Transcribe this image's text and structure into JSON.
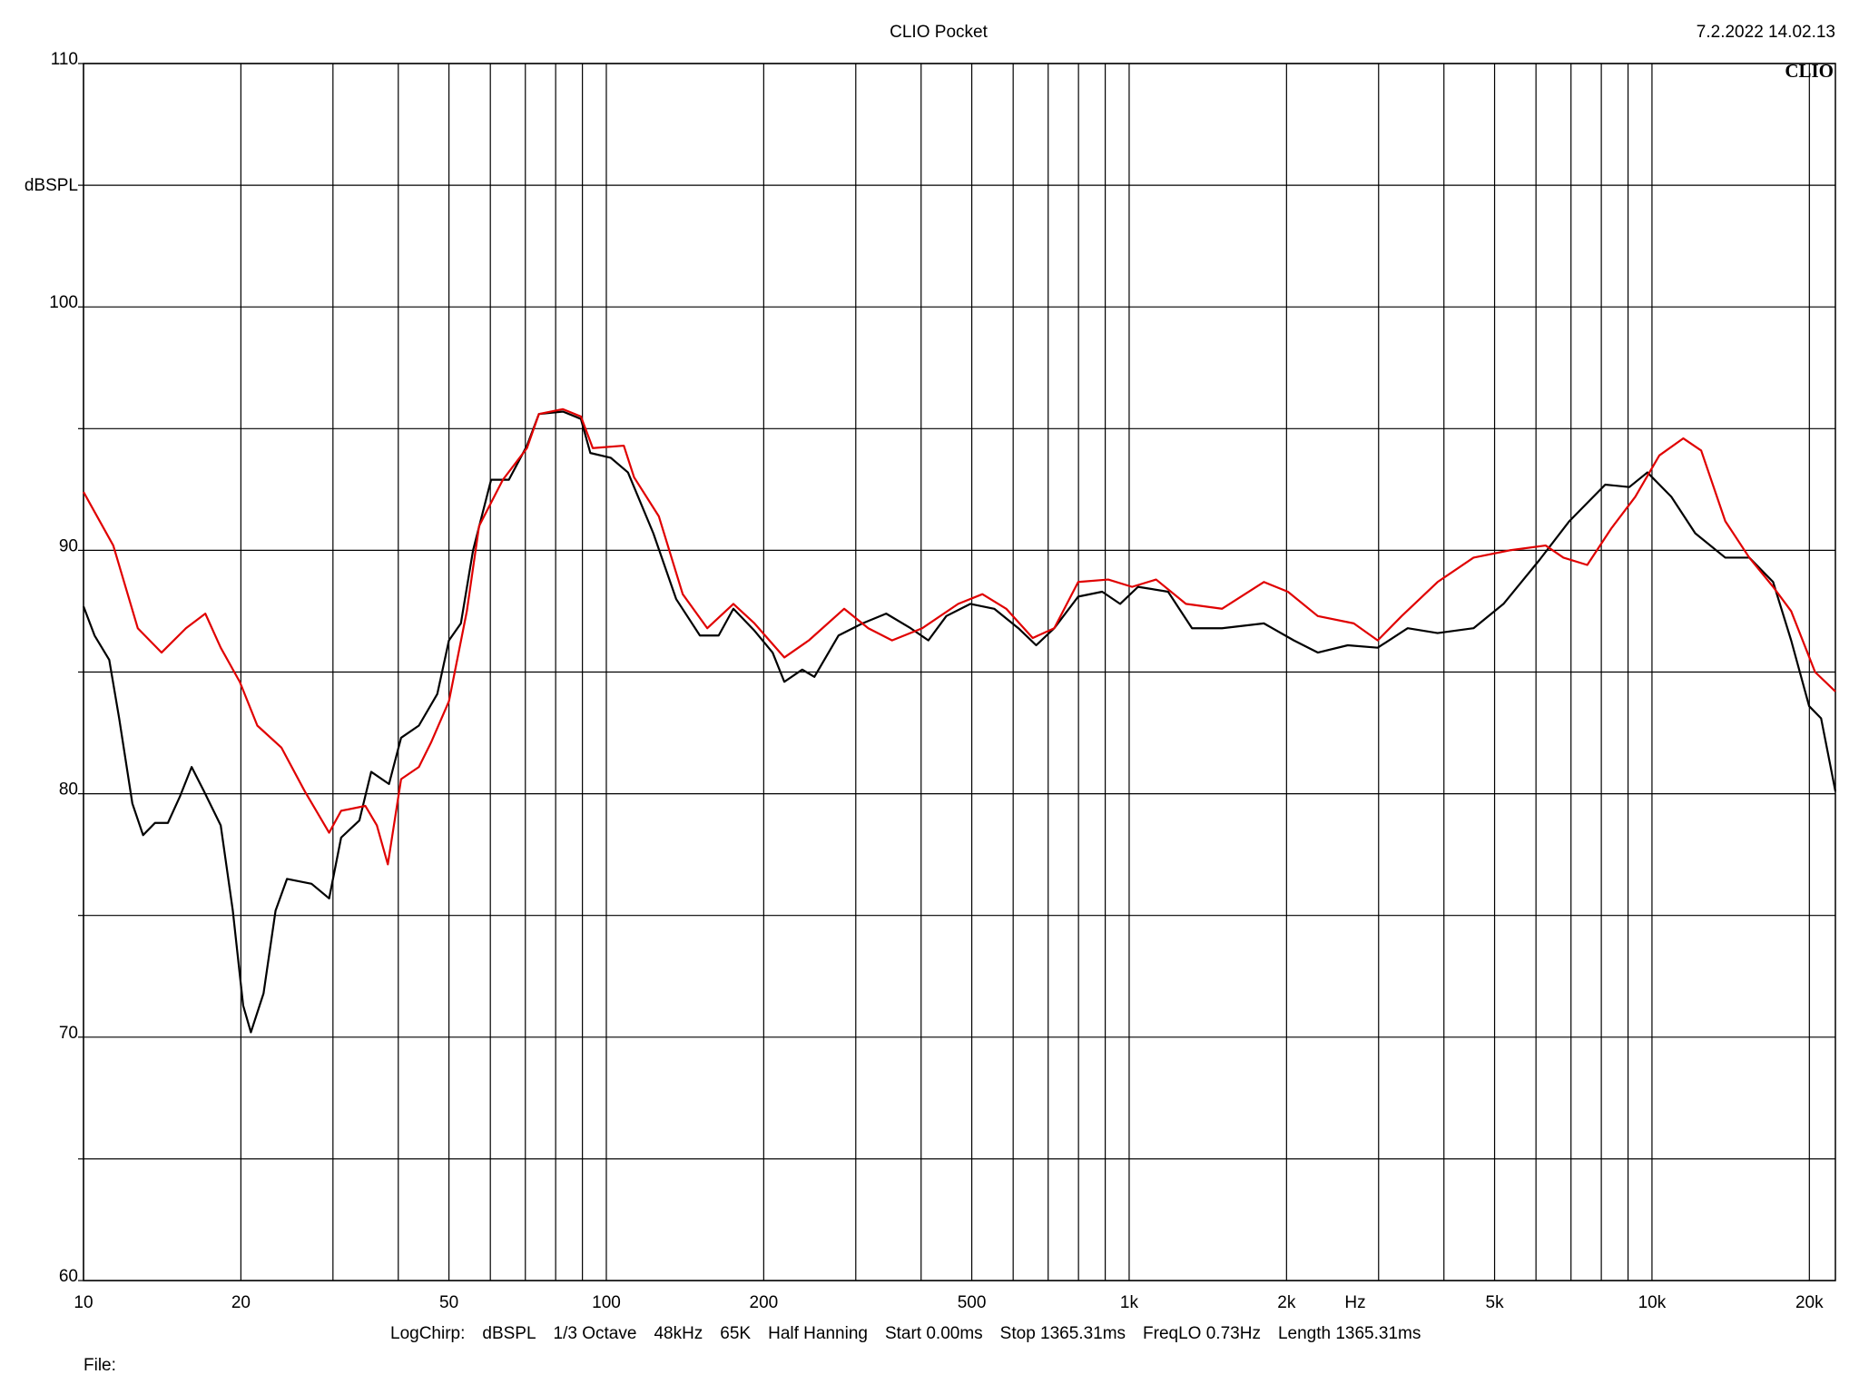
{
  "chart_data": {
    "type": "line",
    "title": "CLIO Pocket",
    "date": "7.2.2022 14.02.13",
    "logo": "CLIO",
    "ylabel": "dBSPL",
    "xlabel": "Hz",
    "settings": [
      "LogChirp:",
      "dBSPL",
      "1/3 Octave",
      "48kHz",
      "65K",
      "Half Hanning",
      "Start 0.00ms",
      "Stop 1365.31ms",
      "FreqLO 0.73Hz",
      "Length 1365.31ms"
    ],
    "file_label": "File:",
    "xlog": true,
    "grid": true,
    "xlim": [
      10,
      22430
    ],
    "ylim": [
      60,
      110
    ],
    "xticks": [
      10,
      20,
      {
        "value": 30,
        "label": null
      },
      {
        "value": 40,
        "label": null
      },
      50,
      {
        "value": 60,
        "label": null
      },
      {
        "value": 70,
        "label": null
      },
      {
        "value": 80,
        "label": null
      },
      {
        "value": 90,
        "label": null
      },
      100,
      200,
      {
        "value": 300,
        "label": null
      },
      {
        "value": 400,
        "label": null
      },
      500,
      {
        "value": 600,
        "label": null
      },
      {
        "value": 700,
        "label": null
      },
      {
        "value": 800,
        "label": null
      },
      {
        "value": 900,
        "label": null
      },
      {
        "value": 1000,
        "label": "1k"
      },
      {
        "value": 2000,
        "label": "2k"
      },
      {
        "value": 3000,
        "label": null
      },
      {
        "value": 4000,
        "label": null
      },
      {
        "value": 5000,
        "label": "5k"
      },
      {
        "value": 6000,
        "label": null
      },
      {
        "value": 7000,
        "label": null
      },
      {
        "value": 8000,
        "label": null
      },
      {
        "value": 9000,
        "label": null
      },
      {
        "value": 10000,
        "label": "10k"
      },
      {
        "value": 20000,
        "label": "20k"
      }
    ],
    "yticks": [
      60,
      {
        "value": 65,
        "label": null
      },
      70,
      {
        "value": 75,
        "label": null
      },
      80,
      {
        "value": 85,
        "label": null
      },
      90,
      {
        "value": 95,
        "label": null
      },
      100,
      {
        "value": 105,
        "label": null
      },
      110
    ],
    "series": [
      {
        "color": "#000000",
        "x": [
          10,
          10.5,
          11.2,
          11.7,
          12.4,
          13.0,
          13.7,
          14.5,
          15.3,
          16.1,
          17.0,
          18.3,
          19.3,
          20.2,
          20.9,
          22.1,
          23.3,
          24.5,
          27.3,
          29.5,
          31.1,
          33.7,
          35.5,
          38.4,
          40.5,
          43.8,
          47.5,
          50.0,
          52.7,
          55.6,
          60.2,
          65.1,
          70.5,
          74.3,
          82.6,
          89.4,
          93.2,
          102,
          110,
          123,
          136,
          151,
          164,
          175,
          192,
          208,
          219,
          237,
          250,
          278,
          309,
          343,
          382,
          413,
          447,
          497,
          552,
          614,
          664,
          719,
          799,
          888,
          961,
          1040,
          1187,
          1319,
          1505,
          1810,
          2065,
          2295,
          2619,
          2988,
          3410,
          3890,
          4557,
          5200,
          6090,
          6950,
          8140,
          9050,
          9800,
          10890,
          12100,
          13810,
          15350,
          17050,
          18460,
          19980,
          21060,
          22430
        ],
        "values": [
          87.7,
          86.5,
          85.5,
          83.1,
          79.6,
          78.3,
          78.8,
          78.8,
          79.9,
          81.1,
          80.1,
          78.7,
          75.2,
          71.3,
          70.2,
          71.8,
          75.2,
          76.5,
          76.3,
          75.7,
          78.2,
          78.9,
          80.9,
          80.4,
          82.3,
          82.8,
          84.1,
          86.3,
          87.0,
          90.0,
          92.9,
          92.9,
          94.3,
          95.6,
          95.7,
          95.4,
          94.0,
          93.8,
          93.2,
          90.7,
          88.0,
          86.5,
          86.5,
          87.6,
          86.7,
          85.8,
          84.6,
          85.1,
          84.8,
          86.5,
          87.0,
          87.4,
          86.8,
          86.3,
          87.3,
          87.8,
          87.6,
          86.8,
          86.1,
          86.8,
          88.1,
          88.3,
          87.8,
          88.5,
          88.3,
          86.8,
          86.8,
          87.0,
          86.3,
          85.8,
          86.1,
          86.0,
          86.8,
          86.6,
          86.8,
          87.8,
          89.6,
          91.2,
          92.7,
          92.6,
          93.2,
          92.2,
          90.7,
          89.7,
          89.7,
          88.7,
          86.3,
          83.6,
          83.1,
          80.1
        ]
      },
      {
        "color": "#e00000",
        "x": [
          10,
          11.4,
          12.7,
          14.1,
          15.7,
          17.1,
          18.3,
          19.9,
          21.5,
          23.9,
          26.5,
          29.5,
          31.1,
          34.6,
          36.4,
          38.2,
          40.5,
          43.8,
          46.2,
          50.0,
          54.1,
          57.1,
          63.4,
          70.5,
          74.3,
          82.6,
          89.4,
          94.2,
          108,
          113,
          126,
          140,
          156,
          175,
          192,
          219,
          244,
          285,
          317,
          352,
          402,
          471,
          524,
          582,
          654,
          719,
          799,
          912,
          1013,
          1126,
          1284,
          1505,
          1810,
          2012,
          2295,
          2689,
          2988,
          3321,
          3890,
          4557,
          5340,
          6260,
          6770,
          7520,
          8360,
          9290,
          10330,
          11480,
          12420,
          13810,
          15350,
          17050,
          18460,
          20510,
          22430
        ],
        "values": [
          92.4,
          90.2,
          86.8,
          85.8,
          86.8,
          87.4,
          86.0,
          84.6,
          82.8,
          81.9,
          80.1,
          78.4,
          79.3,
          79.5,
          78.7,
          77.1,
          80.6,
          81.1,
          82.1,
          83.8,
          87.5,
          91.0,
          92.9,
          94.2,
          95.6,
          95.8,
          95.5,
          94.2,
          94.3,
          93.0,
          91.4,
          88.2,
          86.8,
          87.8,
          87.0,
          85.6,
          86.3,
          87.6,
          86.8,
          86.3,
          86.8,
          87.8,
          88.2,
          87.6,
          86.4,
          86.8,
          88.7,
          88.8,
          88.5,
          88.8,
          87.8,
          87.6,
          88.7,
          88.3,
          87.3,
          87.0,
          86.3,
          87.3,
          88.7,
          89.7,
          90.0,
          90.2,
          89.7,
          89.4,
          90.9,
          92.2,
          93.9,
          94.6,
          94.1,
          91.2,
          89.7,
          88.5,
          87.5,
          85.0,
          84.2
        ]
      }
    ]
  }
}
